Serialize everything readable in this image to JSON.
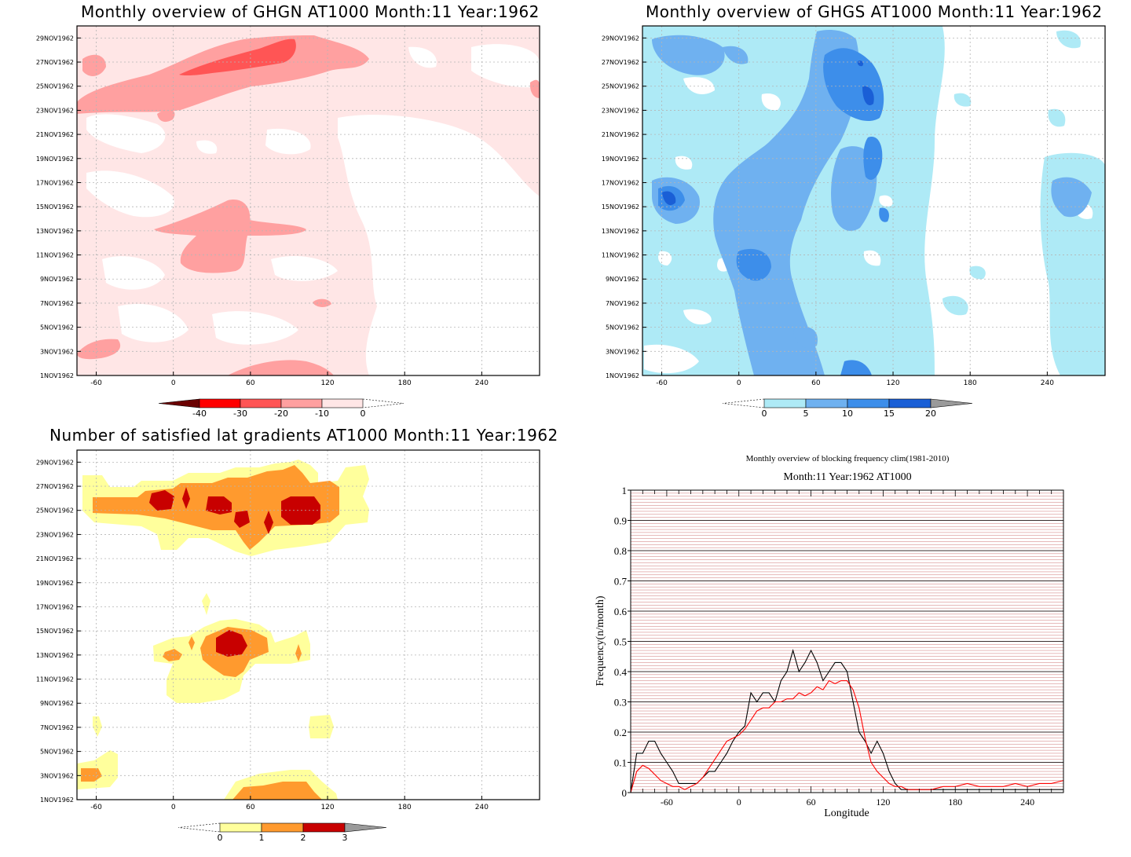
{
  "panels": {
    "ghgn": {
      "title": "Monthly overview of GHGN AT1000 Month:11 Year:1962",
      "colorbar": {
        "labels": [
          "-40",
          "-30",
          "-20",
          "-10",
          "0"
        ],
        "colors": [
          "#6b0000",
          "#ff0000",
          "#ff5555",
          "#ffa0a0",
          "#ffe6e6"
        ]
      }
    },
    "ghgs": {
      "title": "Monthly overview of GHGS AT1000 Month:11 Year:1962",
      "colorbar": {
        "labels": [
          "0",
          "5",
          "10",
          "15",
          "20"
        ],
        "colors": [
          "#aeeaf6",
          "#6fb1f0",
          "#3d8eea",
          "#1a5fd6",
          "#9a9a9a"
        ]
      }
    },
    "lat": {
      "title": "Number of satisfied lat gradients AT1000 Month:11 Year:1962",
      "colorbar": {
        "labels": [
          "0",
          "1",
          "2",
          "3"
        ],
        "colors": [
          "#ffff9c",
          "#ff9a2e",
          "#c80000",
          "#9a9a9a"
        ]
      }
    },
    "freq": {
      "title_line1": "Monthly overview of blocking frequency clim(1981-2010)",
      "title_line2": "Month:11 Year:1962  AT1000"
    }
  },
  "map_axes": {
    "x_ticks": [
      "-60",
      "0",
      "60",
      "120",
      "180",
      "240"
    ],
    "y_ticks": [
      "1NOV1962",
      "3NOV1962",
      "5NOV1962",
      "7NOV1962",
      "9NOV1962",
      "11NOV1962",
      "13NOV1962",
      "15NOV1962",
      "17NOV1962",
      "19NOV1962",
      "21NOV1962",
      "23NOV1962",
      "25NOV1962",
      "27NOV1962",
      "29NOV1962"
    ]
  },
  "chart_data": [
    {
      "type": "line",
      "title": "Monthly overview of blocking frequency clim(1981-2010)",
      "subtitle": "Month:11 Year:1962  AT1000",
      "xlabel": "Longitude",
      "ylabel": "Frequency(n/month)",
      "xlim": [
        -90,
        270
      ],
      "ylim": [
        0,
        1
      ],
      "x_ticks": [
        -60,
        0,
        60,
        120,
        180,
        240
      ],
      "y_ticks": [
        0,
        0.1,
        0.2,
        0.3,
        0.4,
        0.5,
        0.6,
        0.7,
        0.8,
        0.9,
        1
      ],
      "grid": true,
      "series": [
        {
          "color": "#000000",
          "x": [
            -90,
            -85,
            -80,
            -75,
            -70,
            -65,
            -60,
            -55,
            -50,
            -45,
            -40,
            -35,
            -30,
            -25,
            -20,
            -15,
            -10,
            -5,
            0,
            5,
            10,
            15,
            20,
            25,
            30,
            35,
            40,
            45,
            50,
            55,
            60,
            65,
            70,
            75,
            80,
            85,
            90,
            95,
            100,
            105,
            110,
            115,
            120,
            125,
            130,
            135,
            140,
            145,
            150,
            160,
            180,
            200,
            220,
            240,
            260,
            270
          ],
          "y": [
            0,
            0.13,
            0.13,
            0.17,
            0.17,
            0.13,
            0.1,
            0.07,
            0.03,
            0.03,
            0.03,
            0.03,
            0.05,
            0.07,
            0.07,
            0.1,
            0.13,
            0.17,
            0.2,
            0.22,
            0.33,
            0.3,
            0.33,
            0.33,
            0.3,
            0.37,
            0.4,
            0.47,
            0.4,
            0.43,
            0.47,
            0.43,
            0.37,
            0.4,
            0.43,
            0.43,
            0.4,
            0.3,
            0.2,
            0.17,
            0.13,
            0.17,
            0.13,
            0.07,
            0.03,
            0.01,
            0.01,
            0.01,
            0.01,
            0.01,
            0.01,
            0.01,
            0.01,
            0.01,
            0.01,
            0.01
          ]
        },
        {
          "color": "#ff0000",
          "x": [
            -90,
            -85,
            -80,
            -75,
            -70,
            -65,
            -60,
            -55,
            -50,
            -45,
            -40,
            -35,
            -30,
            -25,
            -20,
            -15,
            -10,
            -5,
            0,
            5,
            10,
            15,
            20,
            25,
            30,
            35,
            40,
            45,
            50,
            55,
            60,
            65,
            70,
            75,
            80,
            85,
            90,
            95,
            100,
            105,
            110,
            115,
            120,
            125,
            130,
            135,
            140,
            145,
            150,
            160,
            170,
            180,
            190,
            200,
            210,
            220,
            230,
            240,
            250,
            260,
            270
          ],
          "y": [
            0,
            0.07,
            0.09,
            0.08,
            0.06,
            0.04,
            0.03,
            0.02,
            0.02,
            0.01,
            0.02,
            0.03,
            0.05,
            0.08,
            0.11,
            0.14,
            0.17,
            0.18,
            0.19,
            0.21,
            0.24,
            0.27,
            0.28,
            0.28,
            0.3,
            0.3,
            0.31,
            0.31,
            0.33,
            0.32,
            0.33,
            0.35,
            0.34,
            0.37,
            0.36,
            0.37,
            0.37,
            0.34,
            0.28,
            0.18,
            0.1,
            0.07,
            0.05,
            0.03,
            0.02,
            0.02,
            0.01,
            0.01,
            0.01,
            0.01,
            0.02,
            0.02,
            0.03,
            0.02,
            0.02,
            0.02,
            0.03,
            0.02,
            0.03,
            0.03,
            0.04
          ]
        }
      ]
    }
  ]
}
